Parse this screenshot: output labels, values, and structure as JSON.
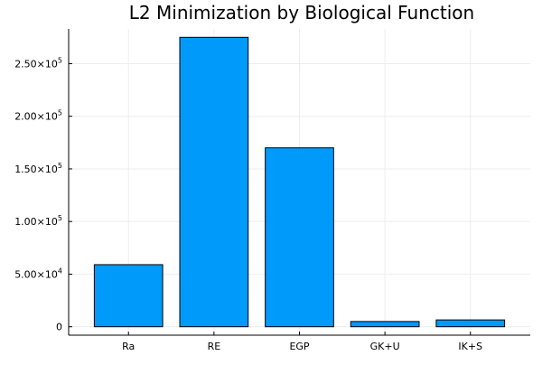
{
  "chart_data": {
    "type": "bar",
    "title": "L2 Minimization by Biological Function",
    "xlabel": "",
    "ylabel": "",
    "categories": [
      "Ra",
      "RE",
      "EGP",
      "GK+U",
      "IK+S"
    ],
    "series": [
      {
        "values": [
          59000,
          275000,
          170000,
          5000,
          6500
        ]
      }
    ],
    "ylim": [
      -8000,
      283000
    ],
    "yticks": [
      {
        "value": 0,
        "label": "0",
        "mant": "",
        "exp": ""
      },
      {
        "value": 50000,
        "label": "",
        "mant": "5.00×10",
        "exp": "4"
      },
      {
        "value": 100000,
        "label": "",
        "mant": "1.00×10",
        "exp": "5"
      },
      {
        "value": 150000,
        "label": "",
        "mant": "1.50×10",
        "exp": "5"
      },
      {
        "value": 200000,
        "label": "",
        "mant": "2.00×10",
        "exp": "5"
      },
      {
        "value": 250000,
        "label": "",
        "mant": "2.50×10",
        "exp": "5"
      }
    ],
    "grid": true,
    "legend": "none",
    "colors": {
      "bar": "#009AFA",
      "bar_edge": "#000000",
      "grid": "#EDEDED",
      "axis": "#000000"
    }
  }
}
